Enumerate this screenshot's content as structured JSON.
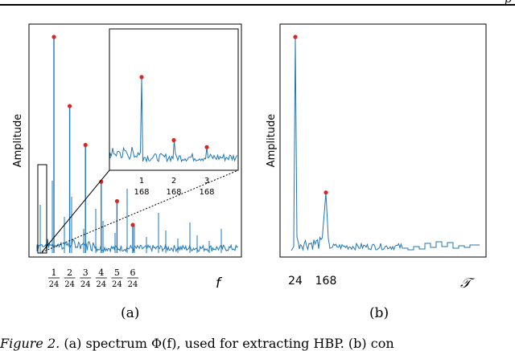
{
  "header": {
    "fragment": "p"
  },
  "panel_a": {
    "label": "(a)",
    "ylabel": "Amplitude",
    "xlabel": "f",
    "ticks": [
      {
        "num": "1",
        "den": "24"
      },
      {
        "num": "2",
        "den": "24"
      },
      {
        "num": "3",
        "den": "24"
      },
      {
        "num": "4",
        "den": "24"
      },
      {
        "num": "5",
        "den": "24"
      },
      {
        "num": "6",
        "den": "24"
      }
    ],
    "inset_ticks": [
      {
        "num": "1",
        "den": "168"
      },
      {
        "num": "2",
        "den": "168"
      },
      {
        "num": "3",
        "den": "168"
      }
    ]
  },
  "panel_b": {
    "label": "(b)",
    "ylabel": "Amplitude",
    "xlabel": "𝒯",
    "ticks": [
      "24",
      "168"
    ]
  },
  "caption": {
    "prefix": "Figure 2.",
    "text": "(a) spectrum Φ(f), used for extracting HBP. (b) con"
  },
  "chart_data": [
    {
      "type": "line",
      "title": "",
      "xlabel": "f",
      "ylabel": "Amplitude",
      "peaks": [
        {
          "x": "1/24",
          "y": 1.0
        },
        {
          "x": "2/24",
          "y": 0.68
        },
        {
          "x": "3/24",
          "y": 0.5
        },
        {
          "x": "4/24",
          "y": 0.33
        },
        {
          "x": "5/24",
          "y": 0.24
        },
        {
          "x": "6/24",
          "y": 0.13
        }
      ],
      "inset": {
        "peaks": [
          {
            "x": "1/168",
            "y": 1.0
          },
          {
            "x": "2/168",
            "y": 0.28
          },
          {
            "x": "3/168",
            "y": 0.2
          }
        ]
      },
      "colors": {
        "line": "#1f77b4",
        "marker": "#d62728"
      }
    },
    {
      "type": "line",
      "title": "",
      "xlabel": "𝒯",
      "ylabel": "Amplitude",
      "peaks": [
        {
          "x": 24,
          "y": 1.0
        },
        {
          "x": 168,
          "y": 0.28
        }
      ],
      "colors": {
        "line": "#1f77b4",
        "marker": "#d62728"
      }
    }
  ]
}
